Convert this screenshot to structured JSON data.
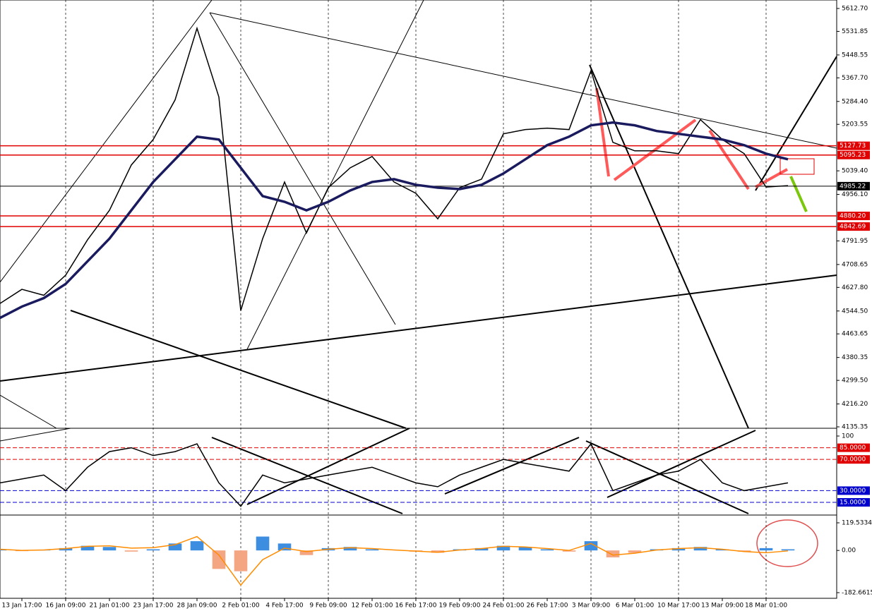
{
  "chart_data": [
    {
      "type": "line",
      "categories": [
        null,
        "13 Jan 17:00",
        null,
        "16 Jan 09:00",
        null,
        "21 Jan 01:00",
        null,
        "23 Jan 17:00",
        null,
        "28 Jan 09:00",
        null,
        "2 Feb 01:00",
        null,
        "4 Feb 17:00",
        null,
        "9 Feb 09:00",
        null,
        "12 Feb 01:00",
        null,
        "16 Feb 17:00",
        null,
        "19 Feb 09:00",
        null,
        "24 Feb 01:00",
        null,
        "26 Feb 17:00",
        null,
        "3 Mar 09:00",
        null,
        "6 Mar 01:00",
        null,
        "10 Mar 17:00",
        null,
        "13 Mar 09:00",
        null,
        "18 Mar 01:00",
        null
      ],
      "series": [
        {
          "color": "#000000",
          "values": [
            4571,
            4621,
            4600,
            4671,
            4796,
            4900,
            5060,
            5150,
            5290,
            5543,
            5300,
            4546,
            4800,
            5000,
            4820,
            4980,
            5050,
            5090,
            5000,
            4960,
            4870,
            4980,
            5010,
            5170,
            5185,
            5190,
            5185,
            5393,
            5140,
            5110,
            5110,
            5100,
            5220,
            5150,
            5100,
            4982,
            4987
          ]
        },
        {
          "color": "#1a1a5e",
          "values": [
            4520,
            4560,
            4590,
            4640,
            4720,
            4800,
            4900,
            5000,
            5080,
            5160,
            5150,
            5050,
            4950,
            4930,
            4900,
            4930,
            4970,
            5000,
            5010,
            4990,
            4980,
            4975,
            4990,
            5030,
            5080,
            5130,
            5160,
            5200,
            5210,
            5200,
            5180,
            5170,
            5160,
            5150,
            5130,
            5100,
            5080
          ]
        }
      ],
      "ylim": [
        4135.35,
        5612.7
      ],
      "yticks": [
        {
          "value": 5612.7,
          "label": "5612.70"
        },
        5531.85,
        5448.55,
        {
          "value": 5367.7,
          "label": "5367.70"
        },
        {
          "value": 5284.4,
          "label": "5284.40"
        },
        5203.55,
        {
          "value": 5039.4,
          "label": "5039.40"
        },
        {
          "value": 4956.1,
          "label": "4956.10"
        },
        4791.95,
        4708.65,
        {
          "value": 4627.8,
          "label": "4627.80"
        },
        {
          "value": 4544.5,
          "label": "4544.50"
        },
        4463.65,
        4380.35,
        {
          "value": 4299.5,
          "label": "4299.50"
        },
        {
          "value": 4216.2,
          "label": "4216.20"
        },
        4135.35
      ],
      "levels": [
        {
          "value": 5127.73,
          "label": "5127.73",
          "color": "#e00000"
        },
        {
          "value": 5095.23,
          "label": "5095.23",
          "color": "#e00000"
        },
        {
          "value": 4985.22,
          "label": "4985.22",
          "color": "#000000"
        },
        {
          "value": 4880.2,
          "label": "4880.20",
          "color": "#e00000"
        },
        {
          "value": 4842.69,
          "label": "4842.69",
          "color": "#e00000"
        }
      ],
      "grid": true
    },
    {
      "type": "line",
      "series": [
        {
          "color": "#000000",
          "values": [
            40,
            45,
            50,
            30,
            60,
            80,
            85,
            75,
            80,
            90,
            40,
            10,
            50,
            40,
            45,
            50,
            55,
            60,
            50,
            40,
            35,
            50,
            60,
            70,
            65,
            60,
            55,
            90,
            30,
            40,
            50,
            55,
            70,
            40,
            30,
            35,
            40
          ]
        }
      ],
      "ylim": [
        0,
        100
      ],
      "yticks": [
        100
      ],
      "levels": [
        {
          "value": 85,
          "label": "85.0000",
          "color": "#e00000"
        },
        {
          "value": 70,
          "label": "70.0000",
          "color": "#e00000"
        },
        {
          "value": 30,
          "label": "30.0000",
          "color": "#0000cc"
        },
        {
          "value": 15,
          "label": "15.0000",
          "color": "#0000cc"
        }
      ]
    },
    {
      "type": "histogram",
      "values": [
        5,
        -3,
        2,
        10,
        20,
        15,
        -5,
        5,
        30,
        40,
        -80,
        -90,
        60,
        30,
        -20,
        10,
        15,
        5,
        0,
        -5,
        -10,
        5,
        10,
        20,
        15,
        5,
        -5,
        40,
        -30,
        -10,
        5,
        10,
        15,
        5,
        -5,
        10,
        5
      ],
      "positive_color": "#3d8ee0",
      "negative_color": "#f4a582",
      "series": [
        {
          "color": "#ff8c00",
          "values": [
            5,
            0,
            2,
            8,
            18,
            20,
            10,
            12,
            25,
            60,
            -20,
            -150,
            -40,
            10,
            -5,
            5,
            12,
            8,
            2,
            -3,
            -8,
            2,
            8,
            18,
            15,
            8,
            0,
            30,
            -20,
            -12,
            2,
            8,
            12,
            5,
            -5,
            -10,
            -2
          ]
        }
      ],
      "ylim": [
        -182.6615,
        119.5334
      ],
      "yticks": [
        119.5334,
        {
          "value": 0,
          "label": "0.00"
        },
        -182.6615
      ]
    }
  ]
}
